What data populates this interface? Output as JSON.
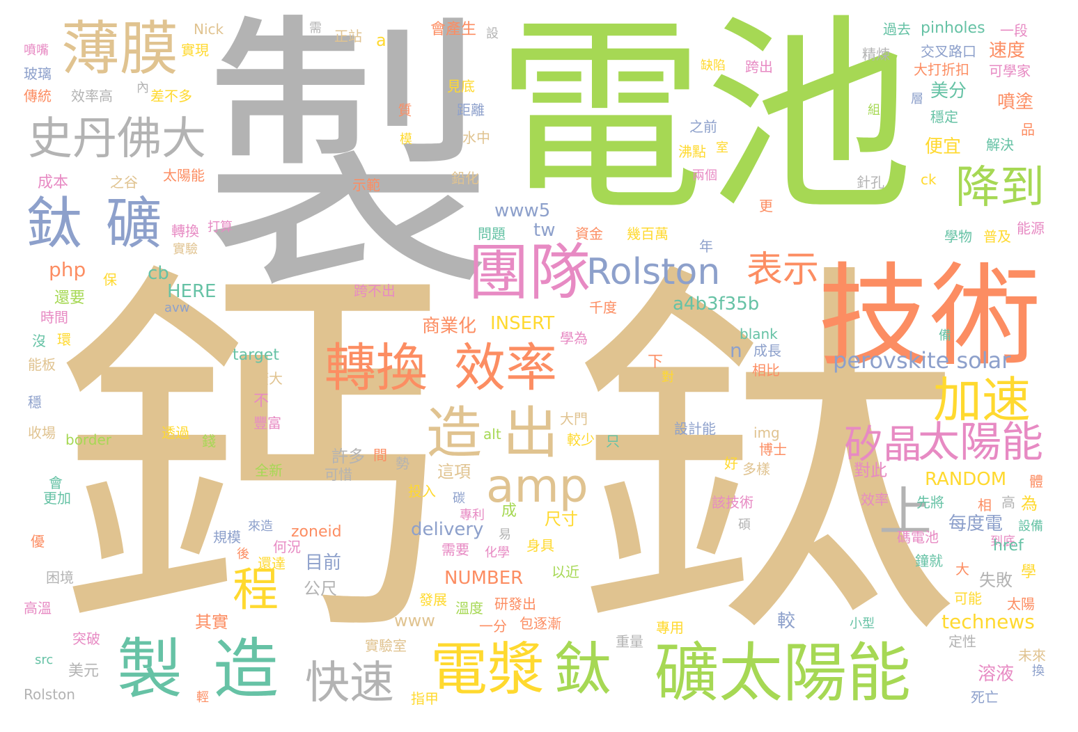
{
  "palette": {
    "tan": "#e0c390",
    "green": "#a6d854",
    "grey": "#b3b3b3",
    "orange": "#fc8d62",
    "blue": "#8da0cb",
    "pink": "#e78ac3",
    "teal": "#66c2a5",
    "yellow": "#ffd92f"
  },
  "words": [
    {
      "t": "鈣",
      "c": "tan"
    },
    {
      "t": "鈦",
      "c": "tan"
    },
    {
      "t": "製",
      "c": "grey"
    },
    {
      "t": "電池",
      "c": "green"
    },
    {
      "t": "技術",
      "c": "orange"
    },
    {
      "t": "團隊",
      "c": "pink"
    },
    {
      "t": "Rolston",
      "c": "blue"
    },
    {
      "t": "表示",
      "c": "orange"
    },
    {
      "t": "薄膜",
      "c": "tan"
    },
    {
      "t": "史丹佛大",
      "c": "grey"
    },
    {
      "t": "鈦",
      "c": "blue"
    },
    {
      "t": "礦",
      "c": "blue"
    },
    {
      "t": "降到",
      "c": "green"
    },
    {
      "t": "加速",
      "c": "yellow"
    },
    {
      "t": "轉換",
      "c": "orange"
    },
    {
      "t": "效率",
      "c": "orange"
    },
    {
      "t": "矽晶",
      "c": "pink"
    },
    {
      "t": "太陽能",
      "c": "pink"
    },
    {
      "t": "造",
      "c": "tan"
    },
    {
      "t": "出",
      "c": "tan"
    },
    {
      "t": "amp",
      "c": "tan"
    },
    {
      "t": "上",
      "c": "grey"
    },
    {
      "t": "程",
      "c": "yellow"
    },
    {
      "t": "製",
      "c": "teal"
    },
    {
      "t": "造",
      "c": "teal"
    },
    {
      "t": "快速",
      "c": "grey"
    },
    {
      "t": "電漿",
      "c": "yellow"
    },
    {
      "t": "鈦",
      "c": "green"
    },
    {
      "t": "礦太陽能",
      "c": "green"
    },
    {
      "t": "perovskite solar",
      "c": "blue"
    },
    {
      "t": "Nick",
      "c": "tan"
    },
    {
      "t": "實現",
      "c": "yellow"
    },
    {
      "t": "效率高",
      "c": "grey"
    },
    {
      "t": "差不多",
      "c": "yellow"
    },
    {
      "t": "內",
      "c": "grey"
    },
    {
      "t": "傳統",
      "c": "orange"
    },
    {
      "t": "玻璃",
      "c": "blue"
    },
    {
      "t": "噴嘴",
      "c": "pink"
    },
    {
      "t": "成本",
      "c": "pink"
    },
    {
      "t": "之谷",
      "c": "tan"
    },
    {
      "t": "太陽能",
      "c": "orange"
    },
    {
      "t": "示範",
      "c": "orange"
    },
    {
      "t": "鉛化",
      "c": "tan"
    },
    {
      "t": "水中",
      "c": "tan"
    },
    {
      "t": "距離",
      "c": "blue"
    },
    {
      "t": "見底",
      "c": "yellow"
    },
    {
      "t": "正站",
      "c": "tan"
    },
    {
      "t": "a",
      "c": "yellow"
    },
    {
      "t": "需",
      "c": "grey"
    },
    {
      "t": "會產生",
      "c": "orange"
    },
    {
      "t": "設",
      "c": "grey"
    },
    {
      "t": "質",
      "c": "orange"
    },
    {
      "t": "模",
      "c": "yellow"
    },
    {
      "t": "缺陷",
      "c": "yellow"
    },
    {
      "t": "跨出",
      "c": "pink"
    },
    {
      "t": "之前",
      "c": "blue"
    },
    {
      "t": "沸點",
      "c": "yellow"
    },
    {
      "t": "室",
      "c": "yellow"
    },
    {
      "t": "兩個",
      "c": "pink"
    },
    {
      "t": "ck",
      "c": "yellow"
    },
    {
      "t": "針孔",
      "c": "grey"
    },
    {
      "t": "過去",
      "c": "teal"
    },
    {
      "t": "pinholes",
      "c": "teal"
    },
    {
      "t": "一段",
      "c": "pink"
    },
    {
      "t": "交叉路口",
      "c": "blue"
    },
    {
      "t": "精煉",
      "c": "grey"
    },
    {
      "t": "大打折扣",
      "c": "orange"
    },
    {
      "t": "速度",
      "c": "orange"
    },
    {
      "t": "可學家",
      "c": "pink"
    },
    {
      "t": "美分",
      "c": "teal"
    },
    {
      "t": "層",
      "c": "blue"
    },
    {
      "t": "噴塗",
      "c": "orange"
    },
    {
      "t": "穩定",
      "c": "teal"
    },
    {
      "t": "組",
      "c": "green"
    },
    {
      "t": "品",
      "c": "orange"
    },
    {
      "t": "便宜",
      "c": "yellow"
    },
    {
      "t": "解決",
      "c": "teal"
    },
    {
      "t": "www5",
      "c": "blue"
    },
    {
      "t": "tw",
      "c": "blue"
    },
    {
      "t": "問題",
      "c": "teal"
    },
    {
      "t": "資金",
      "c": "orange"
    },
    {
      "t": "幾百萬",
      "c": "yellow"
    },
    {
      "t": "年",
      "c": "blue"
    },
    {
      "t": "更",
      "c": "orange"
    },
    {
      "t": "學物",
      "c": "teal"
    },
    {
      "t": "普及",
      "c": "yellow"
    },
    {
      "t": "能源",
      "c": "pink"
    },
    {
      "t": "轉換",
      "c": "pink"
    },
    {
      "t": "打算",
      "c": "pink"
    },
    {
      "t": "實驗",
      "c": "tan"
    },
    {
      "t": "php",
      "c": "orange"
    },
    {
      "t": "cb",
      "c": "teal"
    },
    {
      "t": "保",
      "c": "yellow"
    },
    {
      "t": "HERE",
      "c": "teal"
    },
    {
      "t": "還要",
      "c": "green"
    },
    {
      "t": "avw",
      "c": "blue"
    },
    {
      "t": "跨不出",
      "c": "pink"
    },
    {
      "t": "千度",
      "c": "orange"
    },
    {
      "t": "a4b3f35b",
      "c": "teal"
    },
    {
      "t": "時間",
      "c": "pink"
    },
    {
      "t": "沒",
      "c": "teal"
    },
    {
      "t": "環",
      "c": "yellow"
    },
    {
      "t": "商業化",
      "c": "orange"
    },
    {
      "t": "INSERT",
      "c": "yellow"
    },
    {
      "t": "學為",
      "c": "pink"
    },
    {
      "t": "blank",
      "c": "teal"
    },
    {
      "t": "備",
      "c": "teal"
    },
    {
      "t": "成長",
      "c": "blue"
    },
    {
      "t": "n",
      "c": "blue"
    },
    {
      "t": "target",
      "c": "teal"
    },
    {
      "t": "能板",
      "c": "tan"
    },
    {
      "t": "下",
      "c": "orange"
    },
    {
      "t": "對",
      "c": "yellow"
    },
    {
      "t": "擴大",
      "c": "tan"
    },
    {
      "t": "相比",
      "c": "orange"
    },
    {
      "t": "穩",
      "c": "blue"
    },
    {
      "t": "不",
      "c": "pink"
    },
    {
      "t": "豐富",
      "c": "pink"
    },
    {
      "t": "收場",
      "c": "tan"
    },
    {
      "t": "border",
      "c": "green"
    },
    {
      "t": "透過",
      "c": "yellow"
    },
    {
      "t": "錢",
      "c": "green"
    },
    {
      "t": "大門",
      "c": "tan"
    },
    {
      "t": "較少",
      "c": "yellow"
    },
    {
      "t": "alt",
      "c": "green"
    },
    {
      "t": "只",
      "c": "teal"
    },
    {
      "t": "設計能",
      "c": "blue"
    },
    {
      "t": "img",
      "c": "tan"
    },
    {
      "t": "博士",
      "c": "orange"
    },
    {
      "t": "許多",
      "c": "grey"
    },
    {
      "t": "可惜",
      "c": "grey"
    },
    {
      "t": "間",
      "c": "orange"
    },
    {
      "t": "勢",
      "c": "grey"
    },
    {
      "t": "這項",
      "c": "tan"
    },
    {
      "t": "全新",
      "c": "green"
    },
    {
      "t": "好",
      "c": "yellow"
    },
    {
      "t": "多樣",
      "c": "tan"
    },
    {
      "t": "對此",
      "c": "pink"
    },
    {
      "t": "RANDOM",
      "c": "yellow"
    },
    {
      "t": "體",
      "c": "orange"
    },
    {
      "t": "會",
      "c": "teal"
    },
    {
      "t": "更加",
      "c": "teal"
    },
    {
      "t": "投入",
      "c": "yellow"
    },
    {
      "t": "碳",
      "c": "blue"
    },
    {
      "t": "效率",
      "c": "pink"
    },
    {
      "t": "先將",
      "c": "teal"
    },
    {
      "t": "高",
      "c": "grey"
    },
    {
      "t": "為",
      "c": "yellow"
    },
    {
      "t": "相",
      "c": "orange"
    },
    {
      "t": "該技術",
      "c": "pink"
    },
    {
      "t": "成",
      "c": "green"
    },
    {
      "t": "尺寸",
      "c": "yellow"
    },
    {
      "t": "每度電",
      "c": "blue"
    },
    {
      "t": "delivery",
      "c": "blue"
    },
    {
      "t": "專利",
      "c": "pink"
    },
    {
      "t": "易",
      "c": "grey"
    },
    {
      "t": "身具",
      "c": "yellow"
    },
    {
      "t": "化學",
      "c": "pink"
    },
    {
      "t": "需要",
      "c": "pink"
    },
    {
      "t": "規模",
      "c": "blue"
    },
    {
      "t": "來造",
      "c": "blue"
    },
    {
      "t": "zoneid",
      "c": "orange"
    },
    {
      "t": "何況",
      "c": "pink"
    },
    {
      "t": "還達",
      "c": "yellow"
    },
    {
      "t": "碩",
      "c": "grey"
    },
    {
      "t": "設備",
      "c": "teal"
    },
    {
      "t": "碼電池",
      "c": "pink"
    },
    {
      "t": "到底",
      "c": "pink"
    },
    {
      "t": "href",
      "c": "teal"
    },
    {
      "t": "優",
      "c": "orange"
    },
    {
      "t": "後",
      "c": "orange"
    },
    {
      "t": "目前",
      "c": "blue"
    },
    {
      "t": "以近",
      "c": "green"
    },
    {
      "t": "鐘就",
      "c": "teal"
    },
    {
      "t": "大",
      "c": "orange"
    },
    {
      "t": "學",
      "c": "yellow"
    },
    {
      "t": "困境",
      "c": "grey"
    },
    {
      "t": "NUMBER",
      "c": "orange"
    },
    {
      "t": "公尺",
      "c": "grey"
    },
    {
      "t": "失敗",
      "c": "grey"
    },
    {
      "t": "高溫",
      "c": "pink"
    },
    {
      "t": "發展",
      "c": "yellow"
    },
    {
      "t": "溫度",
      "c": "green"
    },
    {
      "t": "研發出",
      "c": "orange"
    },
    {
      "t": "可能",
      "c": "yellow"
    },
    {
      "t": "太陽",
      "c": "orange"
    },
    {
      "t": "其實",
      "c": "orange"
    },
    {
      "t": "www",
      "c": "tan"
    },
    {
      "t": "一分",
      "c": "orange"
    },
    {
      "t": "包逐漸",
      "c": "orange"
    },
    {
      "t": "較",
      "c": "blue"
    },
    {
      "t": "technews",
      "c": "yellow"
    },
    {
      "t": "小型",
      "c": "teal"
    },
    {
      "t": "突破",
      "c": "pink"
    },
    {
      "t": "實驗室",
      "c": "tan"
    },
    {
      "t": "專用",
      "c": "yellow"
    },
    {
      "t": "重量",
      "c": "grey"
    },
    {
      "t": "定性",
      "c": "grey"
    },
    {
      "t": "src",
      "c": "teal"
    },
    {
      "t": "美元",
      "c": "grey"
    },
    {
      "t": "溶液",
      "c": "pink"
    },
    {
      "t": "未來",
      "c": "tan"
    },
    {
      "t": "換",
      "c": "blue"
    },
    {
      "t": "Rolston",
      "c": "grey"
    },
    {
      "t": "輕",
      "c": "orange"
    },
    {
      "t": "指甲",
      "c": "yellow"
    },
    {
      "t": "死亡",
      "c": "blue"
    }
  ]
}
